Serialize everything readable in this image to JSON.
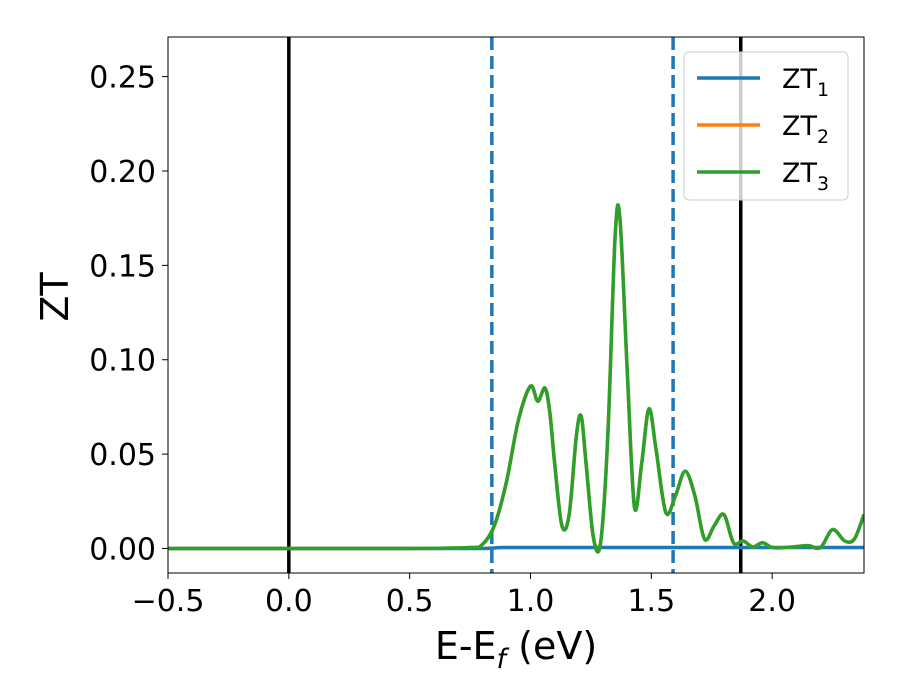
{
  "chart_data": {
    "type": "line",
    "xlabel": "E-E",
    "xlabel_sub": "f",
    "xlabel_unit": " (eV)",
    "ylabel": "ZT",
    "xlim": [
      -0.5,
      2.38
    ],
    "ylim": [
      -0.013,
      0.271
    ],
    "xticks": [
      -0.5,
      0.0,
      0.5,
      1.0,
      1.5,
      2.0
    ],
    "xtick_labels": [
      "−0.5",
      "0.0",
      "0.5",
      "1.0",
      "1.5",
      "2.0"
    ],
    "yticks": [
      0.0,
      0.05,
      0.1,
      0.15,
      0.2,
      0.25
    ],
    "ytick_labels": [
      "0.00",
      "0.05",
      "0.10",
      "0.15",
      "0.20",
      "0.25"
    ],
    "grid": false,
    "legend_position": "top-right",
    "vertical_lines": [
      {
        "x": 0.0,
        "style": "solid",
        "color": "#000000"
      },
      {
        "x": 1.87,
        "style": "solid",
        "color": "#000000"
      },
      {
        "x": 0.84,
        "style": "dashed",
        "color": "#1f77b4"
      },
      {
        "x": 1.59,
        "style": "dashed",
        "color": "#1f77b4"
      }
    ],
    "series": [
      {
        "name": "ZT",
        "name_sub": "1",
        "color": "#1f77b4",
        "x": [
          -0.5,
          0.0,
          0.5,
          0.8,
          0.9,
          1.2,
          1.5,
          1.8,
          2.0,
          2.2,
          2.38
        ],
        "y": [
          0.0,
          0.0,
          0.0,
          0.0,
          0.0005,
          0.0005,
          0.0005,
          0.0005,
          0.0005,
          0.0005,
          0.0005
        ]
      },
      {
        "name": "ZT",
        "name_sub": "2",
        "color": "#ff7f0e",
        "x": [
          -0.5,
          0.0,
          0.5,
          0.75,
          0.8,
          0.85,
          0.9,
          0.95,
          1.0,
          1.03,
          1.06,
          1.08,
          1.1,
          1.13,
          1.16,
          1.19,
          1.21,
          1.23,
          1.26,
          1.29,
          1.32,
          1.35,
          1.37,
          1.4,
          1.43,
          1.46,
          1.49,
          1.52,
          1.56,
          1.6,
          1.64,
          1.68,
          1.72,
          1.76,
          1.8,
          1.84,
          1.88,
          1.92,
          1.96,
          2.0,
          2.05,
          2.1,
          2.15,
          2.2,
          2.25,
          2.3,
          2.34,
          2.38
        ],
        "y": [
          0.0,
          0.0,
          0.0,
          0.0005,
          0.002,
          0.012,
          0.035,
          0.068,
          0.086,
          0.078,
          0.085,
          0.072,
          0.045,
          0.012,
          0.018,
          0.06,
          0.07,
          0.045,
          0.006,
          0.003,
          0.06,
          0.165,
          0.175,
          0.095,
          0.022,
          0.045,
          0.074,
          0.052,
          0.019,
          0.028,
          0.041,
          0.028,
          0.005,
          0.012,
          0.018,
          0.003,
          0.004,
          0.0008,
          0.003,
          0.0005,
          0.0005,
          0.001,
          0.0015,
          0.0005,
          0.01,
          0.004,
          0.005,
          0.018
        ]
      },
      {
        "name": "ZT",
        "name_sub": "3",
        "color": "#2ca02c",
        "x": [
          -0.5,
          0.0,
          0.5,
          0.75,
          0.8,
          0.85,
          0.9,
          0.95,
          1.0,
          1.03,
          1.06,
          1.08,
          1.1,
          1.13,
          1.16,
          1.19,
          1.21,
          1.23,
          1.26,
          1.29,
          1.32,
          1.35,
          1.37,
          1.4,
          1.43,
          1.46,
          1.49,
          1.52,
          1.56,
          1.6,
          1.64,
          1.68,
          1.72,
          1.76,
          1.8,
          1.84,
          1.88,
          1.92,
          1.96,
          2.0,
          2.05,
          2.1,
          2.15,
          2.2,
          2.25,
          2.3,
          2.34,
          2.38
        ],
        "y": [
          0.0,
          0.0,
          0.0,
          0.0005,
          0.002,
          0.012,
          0.035,
          0.068,
          0.086,
          0.078,
          0.085,
          0.072,
          0.045,
          0.012,
          0.018,
          0.06,
          0.07,
          0.045,
          0.006,
          0.003,
          0.06,
          0.165,
          0.175,
          0.095,
          0.022,
          0.045,
          0.074,
          0.052,
          0.019,
          0.028,
          0.041,
          0.028,
          0.005,
          0.012,
          0.018,
          0.003,
          0.004,
          0.0008,
          0.003,
          0.0005,
          0.0005,
          0.001,
          0.0015,
          0.0005,
          0.01,
          0.004,
          0.005,
          0.018
        ]
      }
    ]
  }
}
